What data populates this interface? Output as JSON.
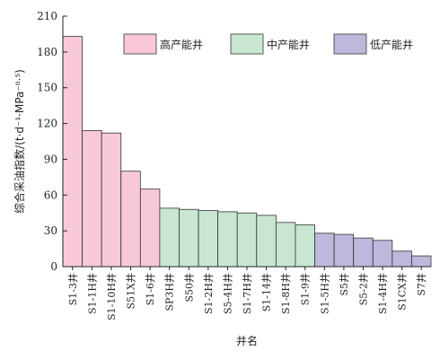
{
  "chart_data": {
    "type": "bar",
    "title": "",
    "xlabel": "井名",
    "ylabel": "综合采油指数/(t·d⁻¹·MPa⁻⁰·⁵)",
    "ylim": [
      0,
      210
    ],
    "yticks": [
      0,
      30,
      60,
      90,
      120,
      150,
      180,
      210
    ],
    "grid": false,
    "legend_position": "top-right",
    "categories": [
      "S1-3井",
      "S1-1H井",
      "S1-10H井",
      "S51X井",
      "S1-6井",
      "SP3H井",
      "S50井",
      "S1-2H井",
      "S5-4H井",
      "S1-7H井",
      "S1-14井",
      "S1-8H井",
      "S1-9井",
      "S1-5H井",
      "S5井",
      "S5-2井",
      "S1-4H井",
      "S1CX井",
      "S7井"
    ],
    "series": [
      {
        "name": "高产能井",
        "color": "#f9c8d8",
        "values": [
          193,
          114,
          112,
          80,
          65,
          null,
          null,
          null,
          null,
          null,
          null,
          null,
          null,
          null,
          null,
          null,
          null,
          null,
          null
        ]
      },
      {
        "name": "中产能井",
        "color": "#c8e6d2",
        "values": [
          null,
          null,
          null,
          null,
          null,
          49,
          48,
          47,
          46,
          45,
          43,
          37,
          35,
          null,
          null,
          null,
          null,
          null,
          null
        ]
      },
      {
        "name": "低产能井",
        "color": "#bdb8dc",
        "values": [
          null,
          null,
          null,
          null,
          null,
          null,
          null,
          null,
          null,
          null,
          null,
          null,
          null,
          28,
          27,
          24,
          22,
          13,
          9
        ]
      }
    ]
  }
}
